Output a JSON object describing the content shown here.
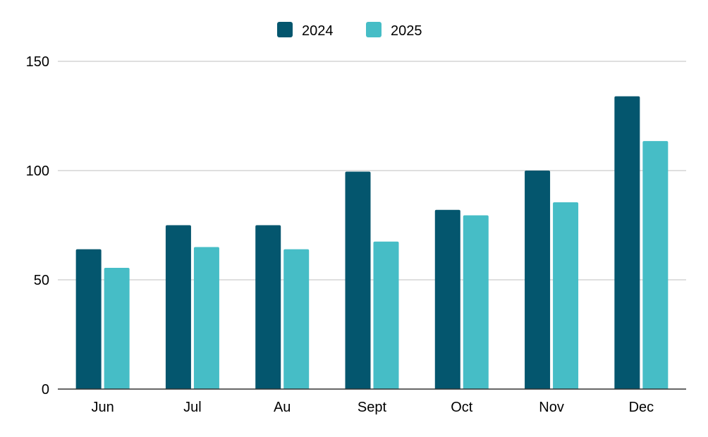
{
  "chart_data": {
    "type": "bar",
    "categories": [
      "Jun",
      "Jul",
      "Au",
      "Sept",
      "Oct",
      "Nov",
      "Dec"
    ],
    "series": [
      {
        "name": "2024",
        "color": "#04566e",
        "values": [
          64,
          75,
          75,
          99.5,
          82,
          100,
          134
        ]
      },
      {
        "name": "2025",
        "color": "#46bdc6",
        "values": [
          55.5,
          65,
          64,
          67.5,
          79.5,
          85.5,
          113.5
        ]
      }
    ],
    "ylim": [
      0,
      150
    ],
    "yticks": [
      0,
      50,
      100,
      150
    ],
    "grid": true,
    "legend_position": "top-center",
    "xlabel": "",
    "ylabel": "",
    "title": ""
  }
}
